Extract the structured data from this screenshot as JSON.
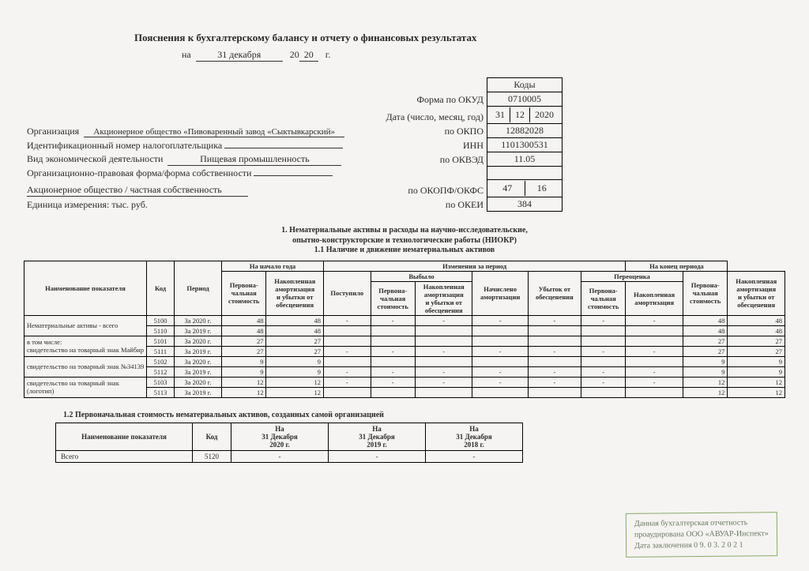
{
  "header": {
    "title": "Пояснения к бухгалтерскому балансу и отчету о финансовых результатах",
    "date_prefix": "на",
    "date_day_month": "31 декабря",
    "date_year_prefix": "20",
    "date_year_suffix": "20",
    "date_g": "г."
  },
  "codes_header": "Коды",
  "lines": [
    {
      "left": "",
      "right": "Форма по ОКУД",
      "code": "0710005"
    },
    {
      "left": "",
      "right": "Дата (число, месяц, год)",
      "triple": [
        "31",
        "12",
        "2020"
      ]
    },
    {
      "label": "Организация",
      "value": "Акционерное общество «Пивоваренный завод «Сыктывкарский»",
      "right": "по ОКПО",
      "code": "12882028"
    },
    {
      "label": "Идентификационный номер налогоплательщика",
      "value": "",
      "right": "ИНН",
      "code": "1101300531"
    },
    {
      "label": "Вид экономической деятельности",
      "value": "Пищевая промышленность",
      "right": "по ОКВЭД",
      "code": "11.05"
    },
    {
      "label": "Организационно-правовая форма/форма собственности",
      "value": "",
      "right": "",
      "code": ""
    },
    {
      "label": "Акционерное общество / частная собственность",
      "value": "",
      "right": "по ОКОПФ/ОКФС",
      "double": [
        "47",
        "16"
      ]
    },
    {
      "label": "Единица измерения: тыс. руб.",
      "value": "",
      "right": "по ОКЕИ",
      "code": "384"
    }
  ],
  "section1": {
    "title": "1. Нематериальные активы и расходы на научно-исследовательские,\nопытно-конструкторские и технологические работы (НИОКР)",
    "sub": "1.1 Наличие и движение нематериальных активов",
    "head": {
      "name": "Наименование показателя",
      "code": "Код",
      "period": "Период",
      "start": "На начало года",
      "changes": "Изменения за период",
      "end": "На конец периода",
      "cost": "Первона-\nчальная\nстоимость",
      "amort": "Накопленная\nамортизация\nи убытки от\nобесценения",
      "in": "Поступило",
      "out": "Выбыло",
      "accrued": "Начислено\nамортизации",
      "loss": "Убыток от\nобесценения",
      "reval": "Переоценка",
      "reval_cost": "Первона-\nчальная\nстоимость",
      "reval_amort": "Накопленная\nамортизация"
    },
    "rows": [
      {
        "name": "Нематериальные активы - всего",
        "code": "5100",
        "period": "За 2020 г.",
        "c": [
          "48",
          "48",
          "-",
          "-",
          "-",
          "-",
          "-",
          "-",
          "-",
          "48",
          "48"
        ]
      },
      {
        "name": "",
        "code": "5110",
        "period": "За 2019 г.",
        "c": [
          "48",
          "48",
          "",
          "",
          "",
          "",
          "",
          "",
          "",
          "48",
          "48"
        ]
      },
      {
        "name": "в том числе:\nсвидетельство на товарный знак Майбир",
        "code": "5101",
        "period": "За 2020 г.",
        "c": [
          "27",
          "27",
          "",
          "",
          "",
          "",
          "",
          "",
          "",
          "27",
          "27"
        ]
      },
      {
        "name": "",
        "code": "5111",
        "period": "За 2019 г.",
        "c": [
          "27",
          "27",
          "-",
          "-",
          "-",
          "-",
          "-",
          "-",
          "-",
          "27",
          "27"
        ]
      },
      {
        "name": "свидетельство на товарный знак №34139",
        "code": "5102",
        "period": "За 2020 г.",
        "c": [
          "9",
          "9",
          "",
          "",
          "",
          "",
          "",
          "",
          "",
          "9",
          "9"
        ]
      },
      {
        "name": "",
        "code": "5112",
        "period": "За 2019 г.",
        "c": [
          "9",
          "9",
          "-",
          "-",
          "-",
          "-",
          "-",
          "-",
          "-",
          "9",
          "9"
        ]
      },
      {
        "name": "свидетельство на товарный знак (логотип)",
        "code": "5103",
        "period": "За 2020 г.",
        "c": [
          "12",
          "12",
          "-",
          "-",
          "-",
          "-",
          "-",
          "-",
          "-",
          "12",
          "12"
        ]
      },
      {
        "name": "",
        "code": "5113",
        "period": "За 2019 г.",
        "c": [
          "12",
          "12",
          "",
          "",
          "",
          "",
          "",
          "",
          "",
          "12",
          "12"
        ]
      }
    ]
  },
  "section2": {
    "title": "1.2 Первоначальная стоимость нематериальных активов, созданных самой организацией",
    "head": {
      "name": "Наименование показателя",
      "code": "Код",
      "c1": "На\n31 Декабря\n2020 г.",
      "c2": "На\n31 Декабря\n2019 г.",
      "c3": "На\n31 Декабря\n2018 г."
    },
    "row": {
      "name": "Всего",
      "code": "5120",
      "c": [
        "-",
        "-",
        "-"
      ]
    }
  },
  "stamp": {
    "l1": "Данная бухгалтерская отчетность",
    "l2": "проаудирована ООО «АВУАР-Инспект»",
    "l3": "Дата заключения  0 9. 0 3. 2 0 2 1"
  }
}
